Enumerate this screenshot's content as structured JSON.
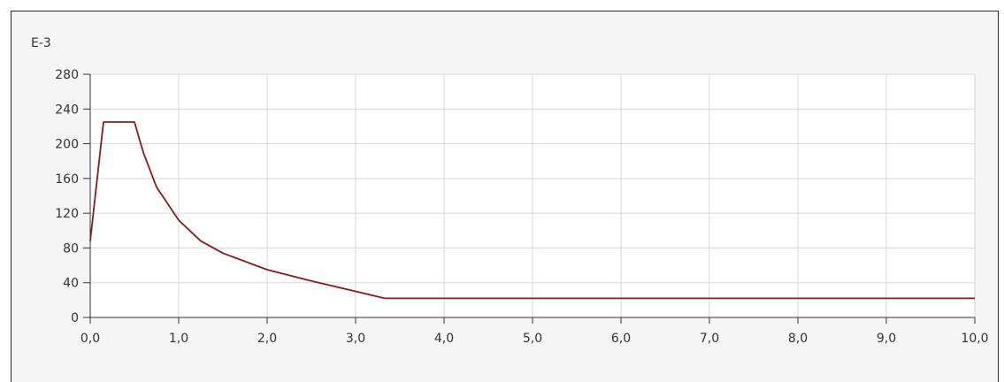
{
  "chart_data": {
    "type": "line",
    "title": "",
    "xlabel": "",
    "ylabel": "",
    "unit_label": "E-3",
    "xlim": [
      0,
      10
    ],
    "ylim": [
      0,
      280
    ],
    "x_ticks": [
      0,
      1,
      2,
      3,
      4,
      5,
      6,
      7,
      8,
      9,
      10
    ],
    "x_tick_labels": [
      "0,0",
      "1,0",
      "2,0",
      "3,0",
      "4,0",
      "5,0",
      "6,0",
      "7,0",
      "8,0",
      "9,0",
      "10,0"
    ],
    "y_ticks": [
      0,
      40,
      80,
      120,
      160,
      200,
      240,
      280
    ],
    "y_tick_labels": [
      "0",
      "40",
      "80",
      "120",
      "160",
      "200",
      "240",
      "280"
    ],
    "grid": true,
    "legend": "none",
    "series": [
      {
        "color": "#8b1a1a",
        "points": [
          [
            0.0,
            88
          ],
          [
            0.15,
            225
          ],
          [
            0.5,
            225
          ],
          [
            0.6,
            190
          ],
          [
            0.75,
            150
          ],
          [
            1.0,
            112
          ],
          [
            1.25,
            88
          ],
          [
            1.5,
            74
          ],
          [
            2.0,
            55
          ],
          [
            2.5,
            42
          ],
          [
            3.0,
            30
          ],
          [
            3.33,
            22
          ],
          [
            10.0,
            22
          ]
        ]
      }
    ]
  }
}
